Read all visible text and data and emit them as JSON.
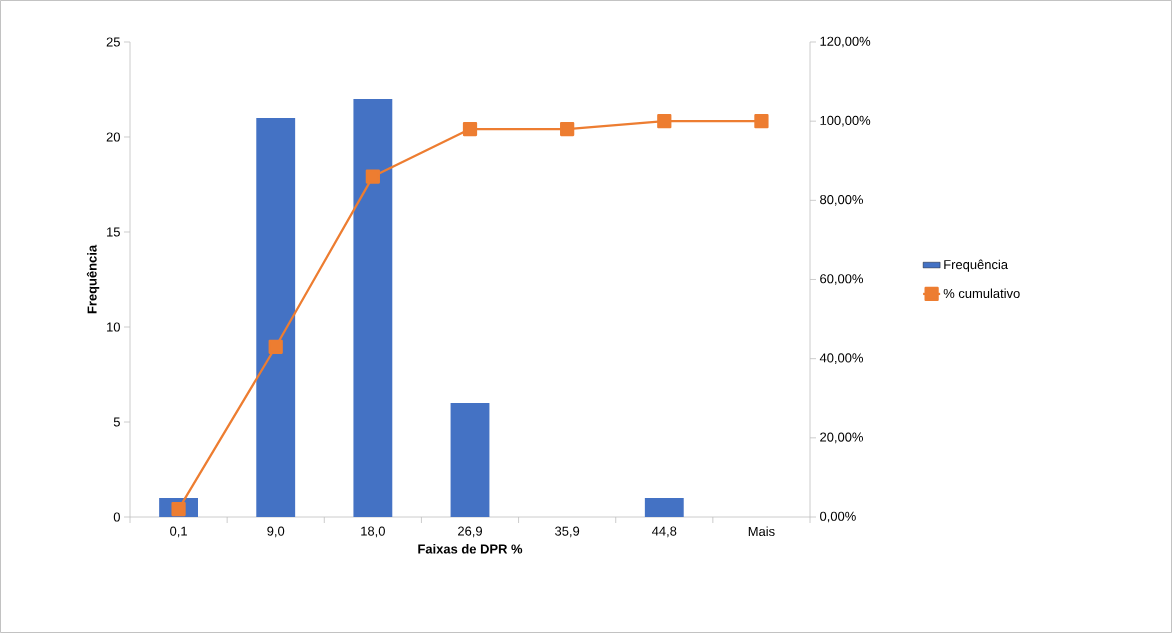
{
  "chart_data": {
    "type": "bar",
    "categories": [
      "0,1",
      "9,0",
      "18,0",
      "26,9",
      "35,9",
      "44,8",
      "Mais"
    ],
    "xlabel": "Faixas de DPR %",
    "ylabel": "Frequência",
    "ylim": [
      0,
      25
    ],
    "yticks": [
      0,
      5,
      10,
      15,
      20,
      25
    ],
    "y2lim": [
      0,
      120
    ],
    "y2ticks": [
      {
        "value": 0,
        "label": "0,00%"
      },
      {
        "value": 20,
        "label": "20,00%"
      },
      {
        "value": 40,
        "label": "40,00%"
      },
      {
        "value": 60,
        "label": "60,00%"
      },
      {
        "value": 80,
        "label": "80,00%"
      },
      {
        "value": 100,
        "label": "100,00%"
      },
      {
        "value": 120,
        "label": "120,00%"
      }
    ],
    "legend": "right",
    "marker": "square",
    "grid": false,
    "series": [
      {
        "name": "Frequência",
        "color": "#4472c4",
        "values": [
          1,
          21,
          22,
          6,
          0,
          1,
          0
        ]
      },
      {
        "name": "% cumulativo",
        "type": "line",
        "axis": "y2",
        "color": "#ed7d31",
        "values": [
          2,
          43,
          86,
          98,
          98,
          100,
          100
        ]
      }
    ]
  }
}
